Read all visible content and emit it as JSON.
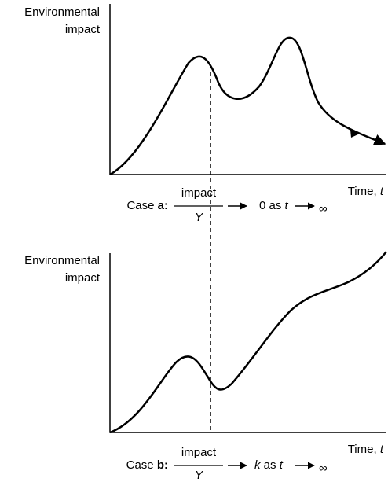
{
  "panels": [
    {
      "y_label": [
        "Environmental",
        "impact"
      ],
      "x_label": [
        "Time,",
        "t"
      ],
      "case_label": "Case",
      "case_letter": "a:",
      "numerator": "impact",
      "denominator": "Y",
      "result": [
        "0 as",
        "t"
      ],
      "limit": "∞"
    },
    {
      "y_label": [
        "Environmental",
        "impact"
      ],
      "x_label": [
        "Time,",
        "t"
      ],
      "case_label": "Case",
      "case_letter": "b:",
      "numerator": "impact",
      "denominator": "Y",
      "result": [
        "k",
        "as",
        "t"
      ],
      "limit": "∞"
    }
  ]
}
